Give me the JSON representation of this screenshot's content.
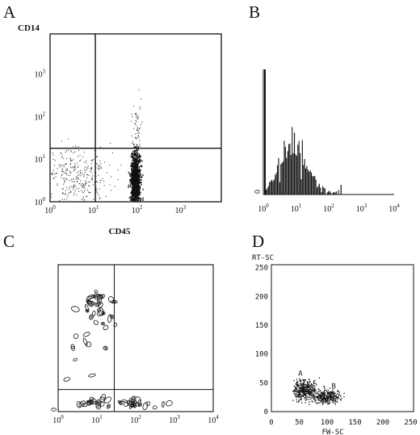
{
  "panels": [
    {
      "letter": "A"
    },
    {
      "letter": "B"
    },
    {
      "letter": "C"
    },
    {
      "letter": "D"
    }
  ],
  "chart_data": [
    {
      "panel": "A",
      "type": "scatter",
      "xlabel": "CD45",
      "ylabel": "CD14",
      "x_scale": "log",
      "y_scale": "log",
      "xlim": [
        1,
        10000
      ],
      "ylim": [
        1,
        10000
      ],
      "x_ticks": [
        {
          "base": "10",
          "exp": "0",
          "v": 1
        },
        {
          "base": "10",
          "exp": "1",
          "v": 10
        },
        {
          "base": "10",
          "exp": "2",
          "v": 100
        },
        {
          "base": "10",
          "exp": "3",
          "v": 1000
        }
      ],
      "y_ticks": [
        {
          "base": "10",
          "exp": "0",
          "v": 1
        },
        {
          "base": "10",
          "exp": "1",
          "v": 10
        },
        {
          "base": "10",
          "exp": "2",
          "v": 100
        },
        {
          "base": "10",
          "exp": "3",
          "v": 1000
        }
      ],
      "quadrant_gates": {
        "x": 11,
        "y": 18
      },
      "populations": [
        {
          "x_center": 90,
          "y_center": 3.5,
          "density": "high"
        },
        {
          "x_center": 4,
          "y_center": 4,
          "density": "low"
        },
        {
          "x_center": 100,
          "y_center": 60,
          "density": "very low"
        }
      ],
      "grid": false,
      "legend": "none"
    },
    {
      "panel": "B",
      "type": "histogram",
      "x_scale": "log",
      "xlim": [
        1,
        10000
      ],
      "x_ticks": [
        {
          "base": "10",
          "exp": "0",
          "v": 1
        },
        {
          "base": "10",
          "exp": "1",
          "v": 10
        },
        {
          "base": "10",
          "exp": "2",
          "v": 100
        },
        {
          "base": "10",
          "exp": "3",
          "v": 1000
        },
        {
          "base": "10",
          "exp": "4",
          "v": 10000
        }
      ],
      "y_ticks": [
        "0"
      ],
      "ylim": [
        0,
        100
      ],
      "peak": {
        "x": 1,
        "height": 100
      },
      "bulk_range": [
        1,
        200
      ],
      "grid": false,
      "legend": "none"
    },
    {
      "panel": "C",
      "type": "contour",
      "x_scale": "log",
      "y_scale": "log",
      "xlim": [
        1,
        10000
      ],
      "ylim": [
        1,
        10000
      ],
      "x_ticks": [
        {
          "base": "10",
          "exp": "0",
          "v": 1
        },
        {
          "base": "10",
          "exp": "1",
          "v": 10
        },
        {
          "base": "10",
          "exp": "2",
          "v": 100
        },
        {
          "base": "10",
          "exp": "3",
          "v": 1000
        },
        {
          "base": "10",
          "exp": "4",
          "v": 10000
        }
      ],
      "y_ticks": [
        "0"
      ],
      "quadrant_gates": {
        "x": 28,
        "y": 4
      },
      "populations": [
        {
          "x_center": 12,
          "y_center": 900,
          "label": "upper-left"
        },
        {
          "x_center": 100,
          "y_center": 1.7,
          "label": "lower-right"
        },
        {
          "x_center": 8,
          "y_center": 1.7,
          "label": "lower-left"
        }
      ],
      "grid": false,
      "legend": "none"
    },
    {
      "panel": "D",
      "type": "scatter",
      "xlabel": "FW-SC",
      "ylabel": "RT-SC",
      "xlim": [
        0,
        255
      ],
      "ylim": [
        0,
        255
      ],
      "x_ticks": [
        {
          "text": "0",
          "v": 0
        },
        {
          "text": "50",
          "v": 50
        },
        {
          "text": "100",
          "v": 100
        },
        {
          "text": "150",
          "v": 150
        },
        {
          "text": "200",
          "v": 200
        },
        {
          "text": "250",
          "v": 250
        }
      ],
      "y_ticks": [
        {
          "text": "0",
          "v": 0
        },
        {
          "text": "50",
          "v": 50
        },
        {
          "text": "100",
          "v": 100
        },
        {
          "text": "150",
          "v": 150
        },
        {
          "text": "200",
          "v": 200
        },
        {
          "text": "250",
          "v": 250
        }
      ],
      "annotations": [
        {
          "text": "A",
          "x": 48,
          "y": 62
        },
        {
          "text": "B",
          "x": 108,
          "y": 40
        }
      ],
      "populations": [
        {
          "label": "A",
          "x_center": 60,
          "y_center": 35
        },
        {
          "label": "B",
          "x_center": 100,
          "y_center": 27
        }
      ],
      "grid": false,
      "legend": "none"
    }
  ]
}
